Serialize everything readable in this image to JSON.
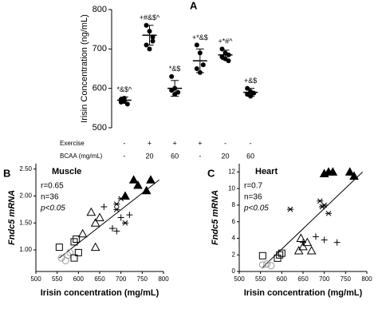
{
  "chart_data": [
    {
      "type": "dotplot",
      "panel": "A",
      "ylabel": "Irisin Concentration (ng/mL)",
      "ylim": [
        500,
        800
      ],
      "yticks": [
        500,
        600,
        700,
        800
      ],
      "annotations": [
        "*&$^",
        "+#&$^",
        "*&$",
        "+*&$",
        "+*#^",
        "+&$"
      ],
      "means": [
        570,
        735,
        600,
        670,
        685,
        590
      ],
      "sd": [
        8,
        25,
        20,
        30,
        12,
        10
      ],
      "points": [
        [
          565,
          575,
          560,
          572,
          568
        ],
        [
          760,
          745,
          730,
          710,
          700,
          720
        ],
        [
          630,
          600,
          590,
          595,
          585
        ],
        [
          710,
          690,
          660,
          650,
          640
        ],
        [
          700,
          690,
          685,
          680,
          675,
          670
        ],
        [
          600,
          592,
          588,
          585,
          580
        ]
      ],
      "conditions": [
        {
          "label": "Exercise",
          "values": [
            "-",
            "+",
            "+",
            "+",
            "-",
            "-"
          ]
        },
        {
          "label": "BCAA (mg/mL)",
          "values": [
            "-",
            "20",
            "60",
            "-",
            "20",
            "60"
          ]
        }
      ]
    },
    {
      "type": "scatter",
      "panel": "B",
      "title": "Muscle",
      "annotations": [
        "r=0.65",
        "n=36",
        "p<0.05"
      ],
      "xlabel": "Irisin concentration (mg/mL)",
      "ylabel": "Fndc5 mRNA",
      "xlim": [
        500,
        800
      ],
      "xticks": [
        500,
        550,
        600,
        650,
        700,
        750,
        800
      ],
      "ylim": [
        0.6,
        2.6
      ],
      "yticks": [
        {
          "value": 1,
          "label": "1.00"
        },
        {
          "value": 1.5,
          "label": "1.50"
        },
        {
          "value": 2,
          "label": "2.00"
        },
        {
          "value": 2.5,
          "label": "2.50"
        }
      ],
      "series": [
        {
          "marker": "circle",
          "color": "#999999",
          "x": [
            560,
            570,
            575,
            580
          ],
          "values": [
            0.85,
            0.8,
            0.9,
            0.95
          ]
        },
        {
          "marker": "square",
          "color": "#000000",
          "x": [
            555,
            590,
            595,
            590,
            600
          ],
          "values": [
            1.05,
            1.15,
            1.2,
            0.85,
            0.95
          ]
        },
        {
          "marker": "triangle-open",
          "color": "#000000",
          "x": [
            610,
            630,
            640,
            650,
            640
          ],
          "values": [
            1.3,
            1.7,
            1.5,
            1.6,
            1.05
          ]
        },
        {
          "marker": "plus",
          "color": "#000000",
          "x": [
            680,
            690,
            700,
            720,
            660
          ],
          "values": [
            1.4,
            1.35,
            1.6,
            1.65,
            1.8
          ]
        },
        {
          "marker": "star",
          "color": "#000000",
          "x": [
            690,
            700,
            710,
            690
          ],
          "values": [
            1.75,
            1.95,
            1.5,
            1.85
          ]
        },
        {
          "marker": "triangle-filled",
          "color": "#000000",
          "x": [
            730,
            740,
            760,
            770,
            710
          ],
          "values": [
            2.3,
            2.2,
            2.1,
            2.3,
            2.0
          ]
        }
      ],
      "fit": {
        "x": [
          555,
          790
        ],
        "values": [
          0.85,
          2.3
        ]
      }
    },
    {
      "type": "scatter",
      "panel": "C",
      "title": "Heart",
      "annotations": [
        "r=0.7",
        "n=36",
        "p<0.05"
      ],
      "xlabel": "Irisin concentration (mg/mL)",
      "ylabel": "Fndc5 mRNA",
      "xlim": [
        500,
        800
      ],
      "xticks": [
        500,
        550,
        600,
        650,
        700,
        750,
        800
      ],
      "ylim": [
        0,
        13
      ],
      "yticks": [
        0,
        2,
        4,
        6,
        8,
        10,
        12
      ],
      "series": [
        {
          "marker": "circle",
          "color": "#999999",
          "x": [
            555,
            565,
            575
          ],
          "values": [
            0.8,
            0.9,
            0.7
          ]
        },
        {
          "marker": "square",
          "color": "#000000",
          "x": [
            555,
            590,
            595,
            600
          ],
          "values": [
            1.9,
            1.6,
            2.0,
            2.2
          ]
        },
        {
          "marker": "triangle-open",
          "color": "#000000",
          "x": [
            640,
            650,
            660,
            670,
            645
          ],
          "values": [
            2.5,
            3,
            3.5,
            2.5,
            4
          ]
        },
        {
          "marker": "plus",
          "color": "#000000",
          "x": [
            650,
            700,
            730,
            680
          ],
          "values": [
            3.5,
            3.8,
            3.5,
            4.2
          ]
        },
        {
          "marker": "star",
          "color": "#000000",
          "x": [
            620,
            690,
            700,
            695,
            710
          ],
          "values": [
            7.5,
            8.5,
            8,
            7.8,
            7
          ]
        },
        {
          "marker": "triangle-filled",
          "color": "#000000",
          "x": [
            710,
            720,
            760,
            770,
            700
          ],
          "values": [
            12,
            12,
            12,
            11.5,
            11.8
          ]
        }
      ],
      "fit": {
        "x": [
          555,
          790
        ],
        "values": [
          0.5,
          12
        ]
      }
    }
  ]
}
